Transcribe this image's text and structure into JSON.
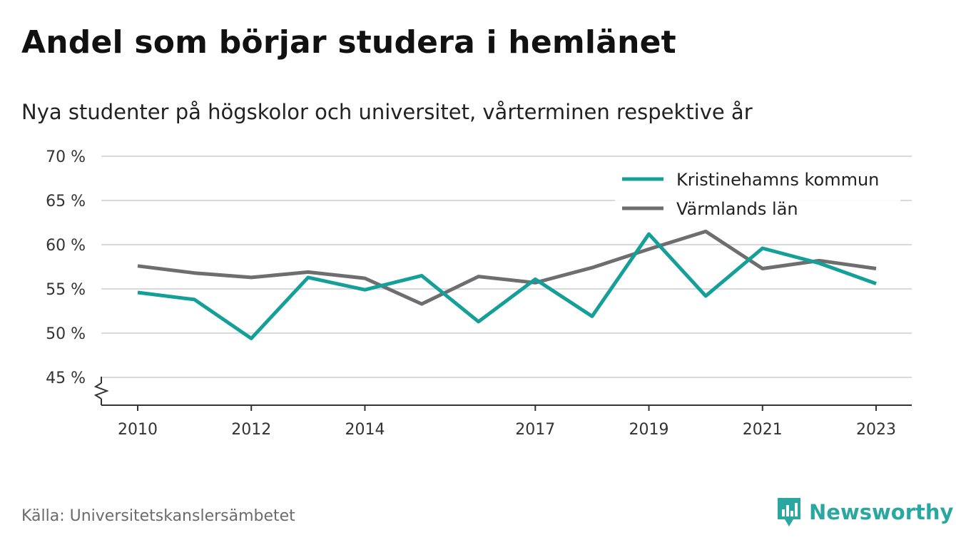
{
  "title": "Andel som börjar studera i hemlänet",
  "subtitle": "Nya studenter på högskolor och universitet, vårterminen respektive år",
  "source": "Källa: Universitetskanslersämbetet",
  "brand": {
    "name": "Newsworthy",
    "icon": "newsworthy-logo-icon",
    "color": "#2aa7a0"
  },
  "chart_data": {
    "type": "line",
    "x": [
      2010,
      2011,
      2012,
      2013,
      2014,
      2015,
      2016,
      2017,
      2018,
      2019,
      2020,
      2021,
      2022,
      2023
    ],
    "x_tick_labels": [
      "2010",
      "2012",
      "2014",
      "2017",
      "2019",
      "2021",
      "2023"
    ],
    "y_tick_labels": [
      "45 %",
      "50 %",
      "55 %",
      "60 %",
      "65 %",
      "70 %"
    ],
    "y_ticks": [
      45,
      50,
      55,
      60,
      65,
      70
    ],
    "ylim": [
      42,
      70
    ],
    "y_axis_break": true,
    "grid": true,
    "legend_position": "top-right",
    "series": [
      {
        "name": "Kristinehamns kommun",
        "color": "#14a098",
        "values": [
          54.6,
          53.8,
          49.4,
          56.3,
          54.9,
          56.5,
          51.3,
          56.1,
          51.9,
          61.2,
          54.2,
          59.6,
          57.9,
          55.6
        ]
      },
      {
        "name": "Värmlands län",
        "color": "#6e6d70",
        "values": [
          57.6,
          56.8,
          56.3,
          56.9,
          56.2,
          53.3,
          56.4,
          55.7,
          57.4,
          59.5,
          61.5,
          57.3,
          58.2,
          57.3
        ]
      }
    ]
  }
}
